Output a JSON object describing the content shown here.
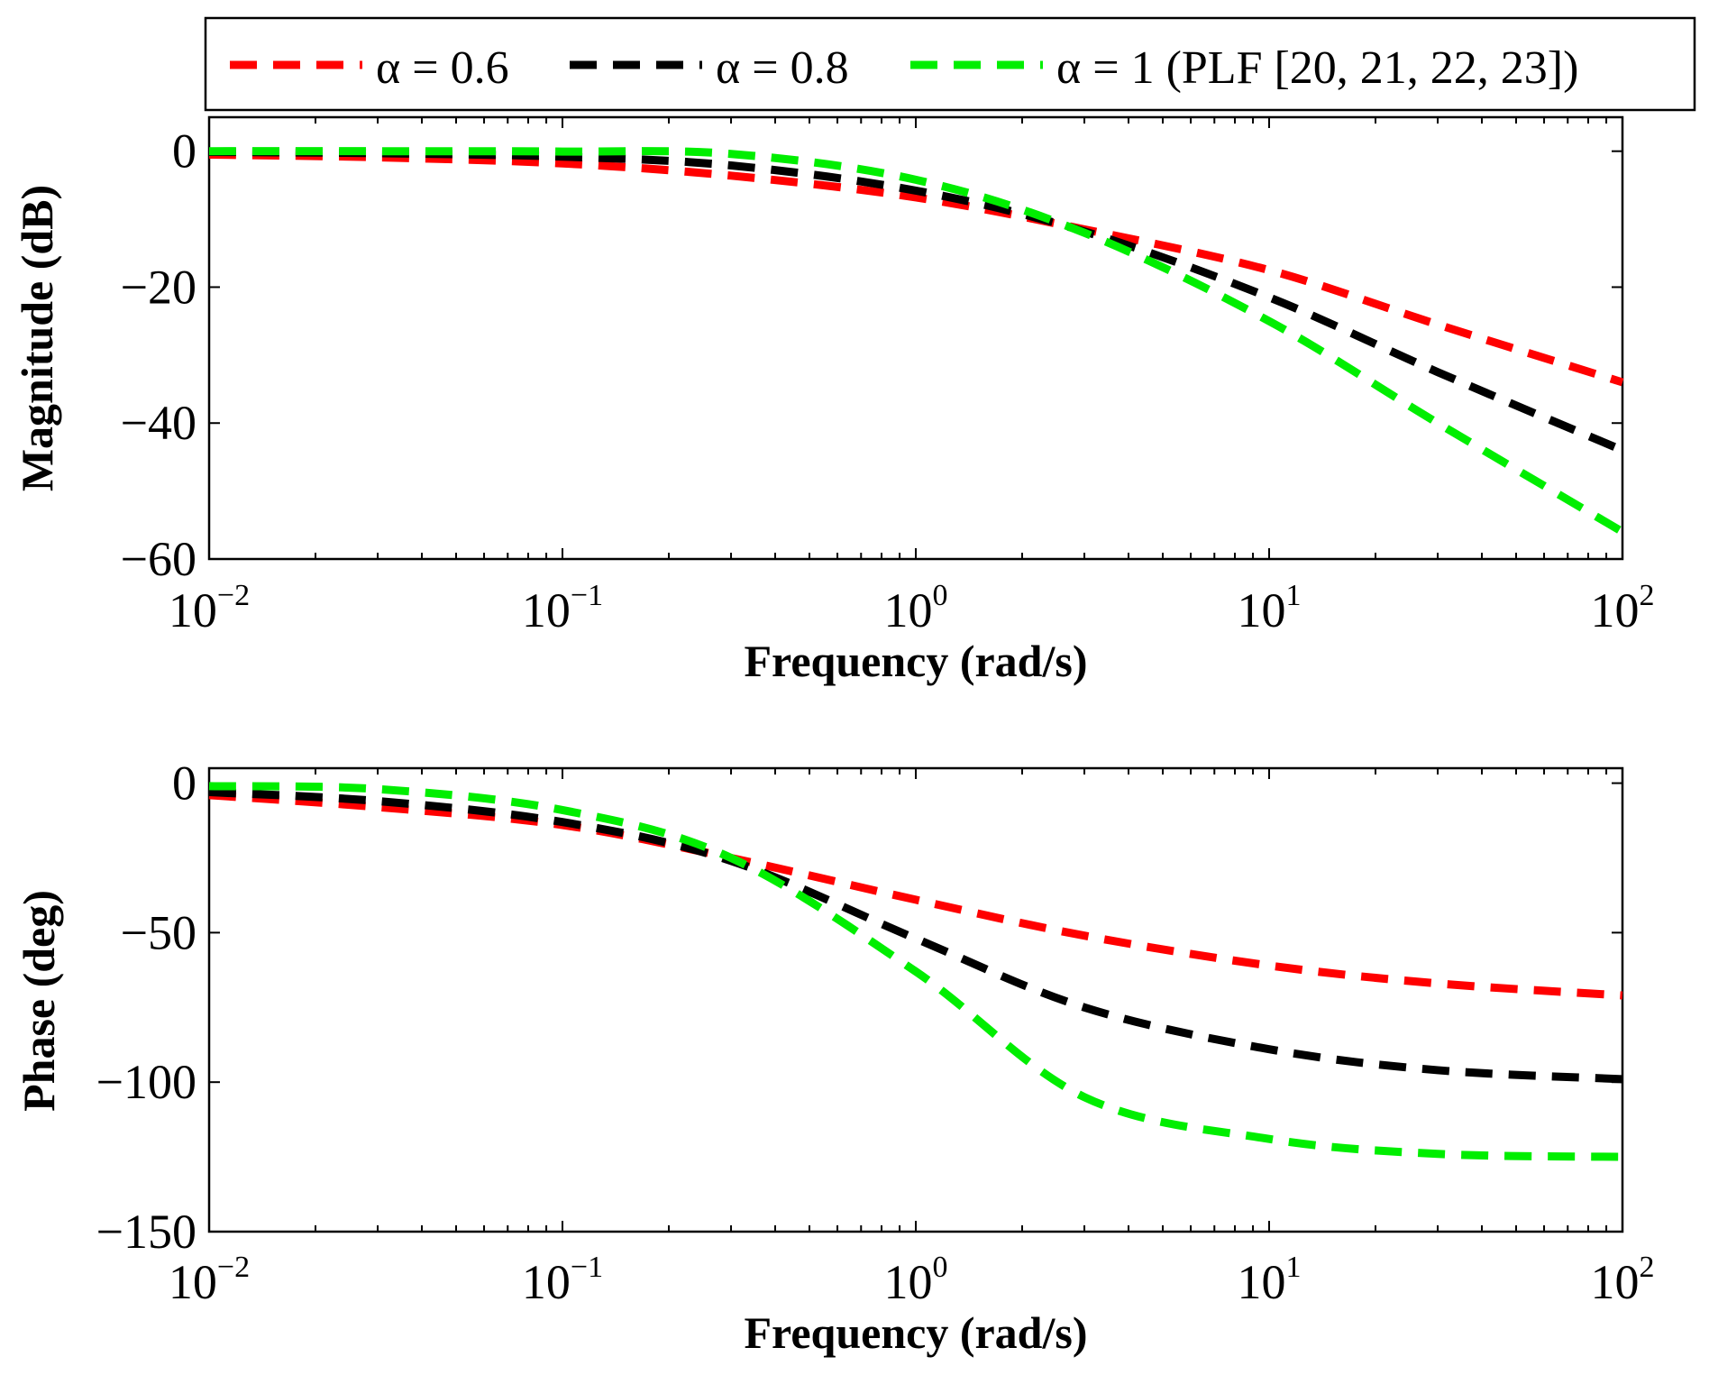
{
  "chart_data": [
    {
      "type": "line",
      "name": "magnitude",
      "xscale": "log",
      "xlim": [
        0.01,
        100
      ],
      "ylim": [
        -60,
        5
      ],
      "xlabel": "Frequency (rad/s)",
      "ylabel": "Magnitude (dB)",
      "xticks": [
        {
          "base": "10",
          "exp": "−2",
          "value": 0.01
        },
        {
          "base": "10",
          "exp": "−1",
          "value": 0.1
        },
        {
          "base": "10",
          "exp": "0",
          "value": 1
        },
        {
          "base": "10",
          "exp": "1",
          "value": 10
        },
        {
          "base": "10",
          "exp": "2",
          "value": 100
        }
      ],
      "yticks": [
        {
          "label": "0",
          "value": 0
        },
        {
          "label": "−20",
          "value": -20
        },
        {
          "label": "−40",
          "value": -40
        },
        {
          "label": "−60",
          "value": -60
        }
      ],
      "x": [
        0.01,
        0.03,
        0.1,
        0.3,
        1,
        3,
        10,
        30,
        100
      ],
      "series": [
        {
          "name": "α = 0.6",
          "color": "#ff0000",
          "values": [
            -0.5,
            -0.9,
            -1.8,
            -3.6,
            -6.8,
            -11.5,
            -17.5,
            -25.5,
            -34
          ]
        },
        {
          "name": "α = 0.8",
          "color": "#000000",
          "values": [
            -0.1,
            -0.3,
            -0.8,
            -2.1,
            -5.8,
            -11.8,
            -21.5,
            -32.5,
            -44
          ]
        },
        {
          "name": "α = 1 (PLF [20, 21, 22, 23])",
          "color": "#00ee00",
          "values": [
            0,
            0,
            -0.05,
            -0.4,
            -4.2,
            -12,
            -25,
            -40,
            -56
          ]
        }
      ]
    },
    {
      "type": "line",
      "name": "phase",
      "xscale": "log",
      "xlim": [
        0.01,
        100
      ],
      "ylim": [
        -150,
        5
      ],
      "xlabel": "Frequency (rad/s)",
      "ylabel": "Phase (deg)",
      "xticks": [
        {
          "base": "10",
          "exp": "−2",
          "value": 0.01
        },
        {
          "base": "10",
          "exp": "−1",
          "value": 0.1
        },
        {
          "base": "10",
          "exp": "0",
          "value": 1
        },
        {
          "base": "10",
          "exp": "1",
          "value": 10
        },
        {
          "base": "10",
          "exp": "2",
          "value": 100
        }
      ],
      "yticks": [
        {
          "label": "0",
          "value": 0
        },
        {
          "label": "−50",
          "value": -50
        },
        {
          "label": "−100",
          "value": -100
        },
        {
          "label": "−150",
          "value": -150
        }
      ],
      "x": [
        0.01,
        0.03,
        0.1,
        0.3,
        1,
        3,
        10,
        30,
        100
      ],
      "series": [
        {
          "name": "α = 0.6",
          "color": "#ff0000",
          "values": [
            -4,
            -8,
            -14,
            -25,
            -39,
            -51,
            -61,
            -67,
            -71
          ]
        },
        {
          "name": "α = 0.8",
          "color": "#000000",
          "values": [
            -3,
            -6,
            -13,
            -26,
            -52,
            -75,
            -89,
            -96,
            -99
          ]
        },
        {
          "name": "α = 1 (PLF [20, 21, 22, 23])",
          "color": "#00ee00",
          "values": [
            -1,
            -2,
            -9,
            -25,
            -63,
            -105,
            -119,
            -124,
            -125
          ]
        }
      ]
    }
  ]
}
